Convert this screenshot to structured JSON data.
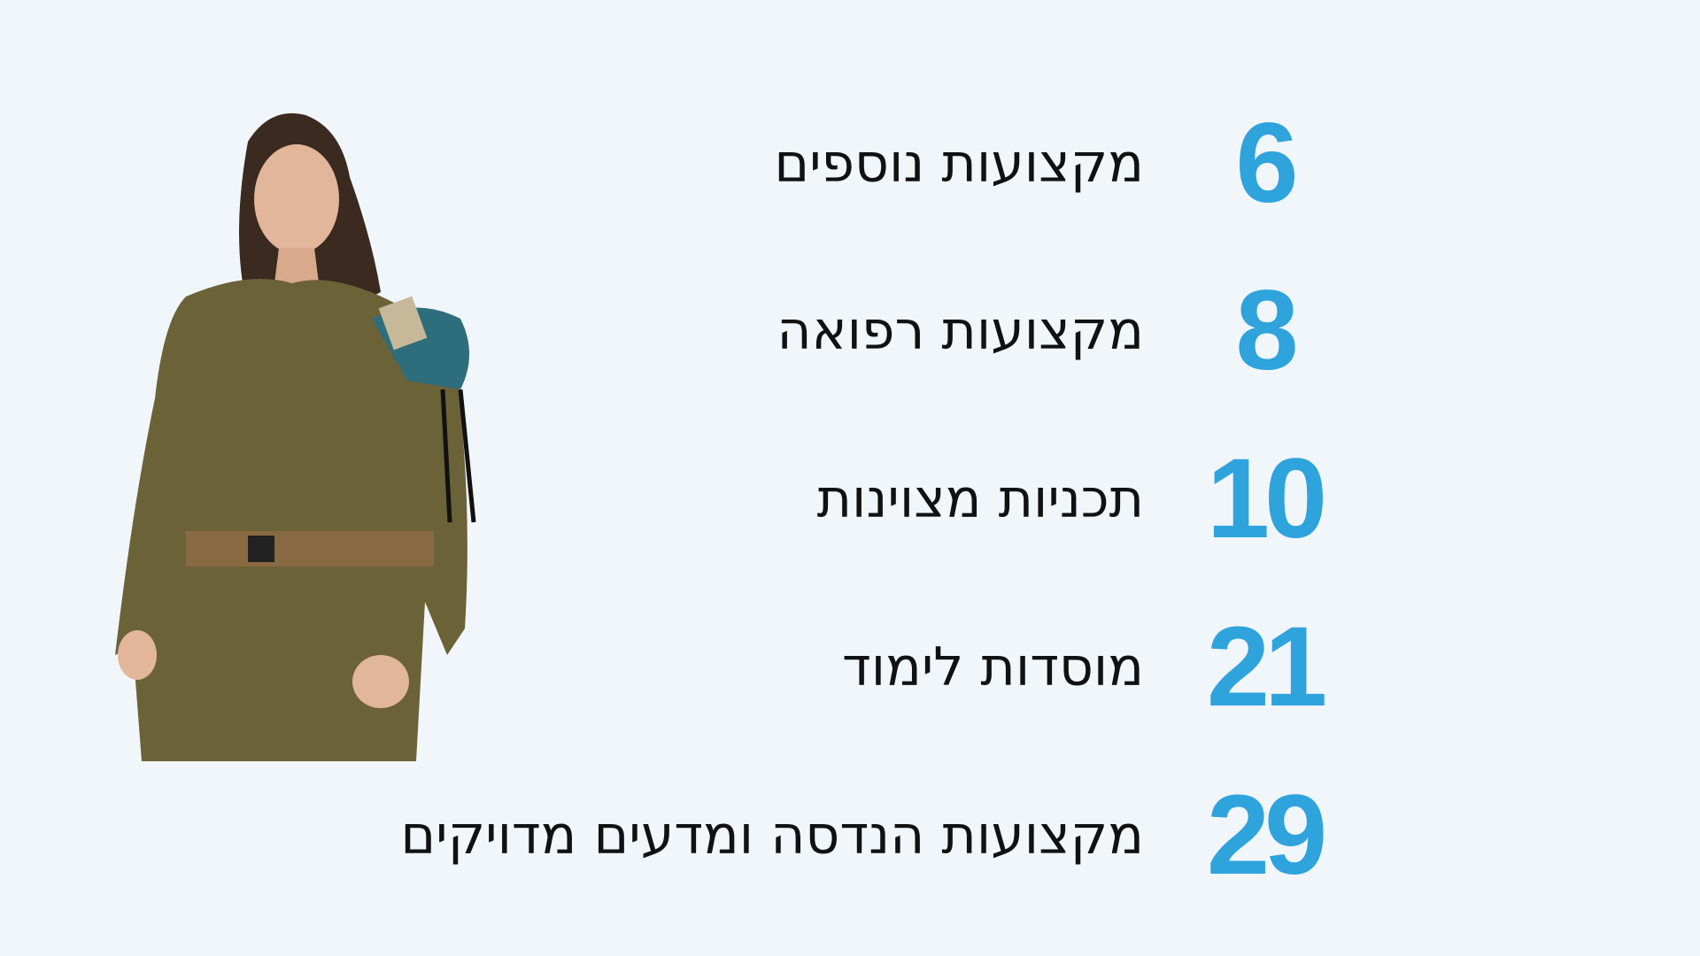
{
  "accent_color": "#2ea3dc",
  "photo": {
    "description_icon": "soldier-photo"
  },
  "stats": [
    {
      "number": "6",
      "label": "מקצועות נוספים"
    },
    {
      "number": "8",
      "label": "מקצועות רפואה"
    },
    {
      "number": "10",
      "label": "תכניות מצוינות"
    },
    {
      "number": "21",
      "label": "מוסדות לימוד"
    },
    {
      "number": "29",
      "label": "מקצועות הנדסה ומדעים מדויקים"
    }
  ]
}
